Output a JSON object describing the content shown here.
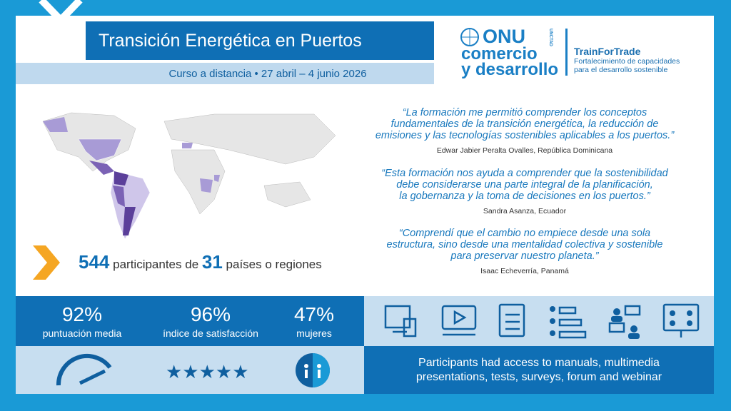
{
  "header": {
    "title": "Transición Energética en Puertos",
    "subtitle": "Curso a distancia • 27 abril – 4 junio 2026"
  },
  "logo": {
    "onu": "ONU",
    "unctad": "UNCTAD",
    "line2": "comercio",
    "line3": "y desarrollo",
    "brand": "TrainForTrade",
    "tagline": [
      "Fortalecimiento de capacidades",
      "para el desarrollo sostenible"
    ]
  },
  "participants": {
    "count": "544",
    "text1": "participantes de",
    "countries": "31",
    "text2": "países o regiones"
  },
  "quotes": [
    {
      "lines": [
        "“La formación me permitió comprender los conceptos",
        "fundamentales de la transición energética, la reducción de",
        "emisiones y las tecnologías sostenibles aplicables a los puertos.”"
      ],
      "author": "Edwar Jabier Peralta Ovalles, República Dominicana"
    },
    {
      "lines": [
        "“Esta formación nos ayuda a comprender que la sostenibilidad",
        "debe considerarse una parte integral de la planificación,",
        "la gobernanza y la toma de decisiones en los puertos.”"
      ],
      "author": "Sandra Asanza, Ecuador"
    },
    {
      "lines": [
        "“Comprendí que el cambio no empiece desde una sola",
        "estructura, sino desde una mentalidad colectiva y sostenible",
        "para preservar nuestro planeta.”"
      ],
      "author": "Isaac Echeverría, Panamá"
    }
  ],
  "stats": [
    {
      "value": "92%",
      "label": "puntuación media"
    },
    {
      "value": "96%",
      "label": "índice de satisfacción"
    },
    {
      "value": "47%",
      "label": "mujeres"
    }
  ],
  "note": [
    "Participants had access to manuals, multimedia",
    "presentations, tests, surveys, forum and webinar"
  ]
}
